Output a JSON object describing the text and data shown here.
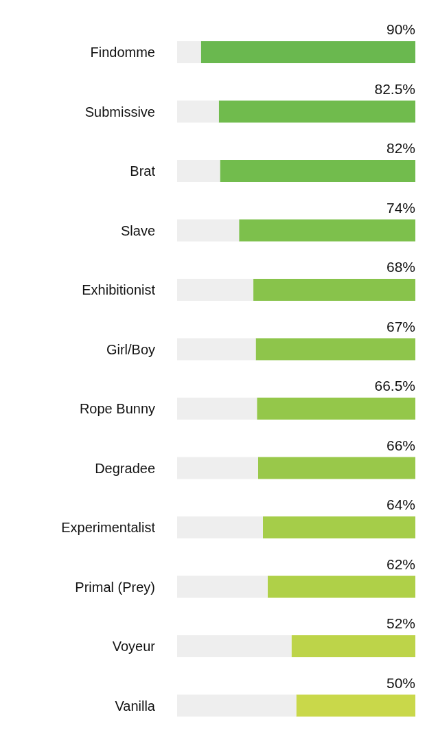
{
  "chart_data": {
    "type": "bar",
    "orientation": "horizontal",
    "stacked": true,
    "categories": [
      "Findomme",
      "Submissive",
      "Brat",
      "Slave",
      "Exhibitionist",
      "Girl/Boy",
      "Rope Bunny",
      "Degradee",
      "Experimentalist",
      "Primal (Prey)",
      "Voyeur",
      "Vanilla"
    ],
    "series": [
      {
        "values": [
          90,
          82.5,
          82,
          74,
          68,
          67,
          66.5,
          66,
          64,
          62,
          52,
          50
        ],
        "value_labels": [
          "90%",
          "82.5%",
          "82%",
          "74%",
          "68%",
          "67%",
          "66.5%",
          "66%",
          "64%",
          "62%",
          "52%",
          "50%"
        ],
        "colors": [
          "#6ab84f",
          "#70bb4d",
          "#72bc4d",
          "#7dc04c",
          "#88c34b",
          "#8ec54b",
          "#94c74a",
          "#99c84a",
          "#a5cd49",
          "#afd048",
          "#bdd449",
          "#c9d84a"
        ]
      },
      {
        "values": [
          10,
          17.5,
          18,
          26,
          32,
          33,
          33.5,
          34,
          36,
          38,
          48,
          50
        ],
        "color": "#eeeeee"
      }
    ],
    "xlim": [
      100,
      0
    ],
    "tick_labels": false
  }
}
